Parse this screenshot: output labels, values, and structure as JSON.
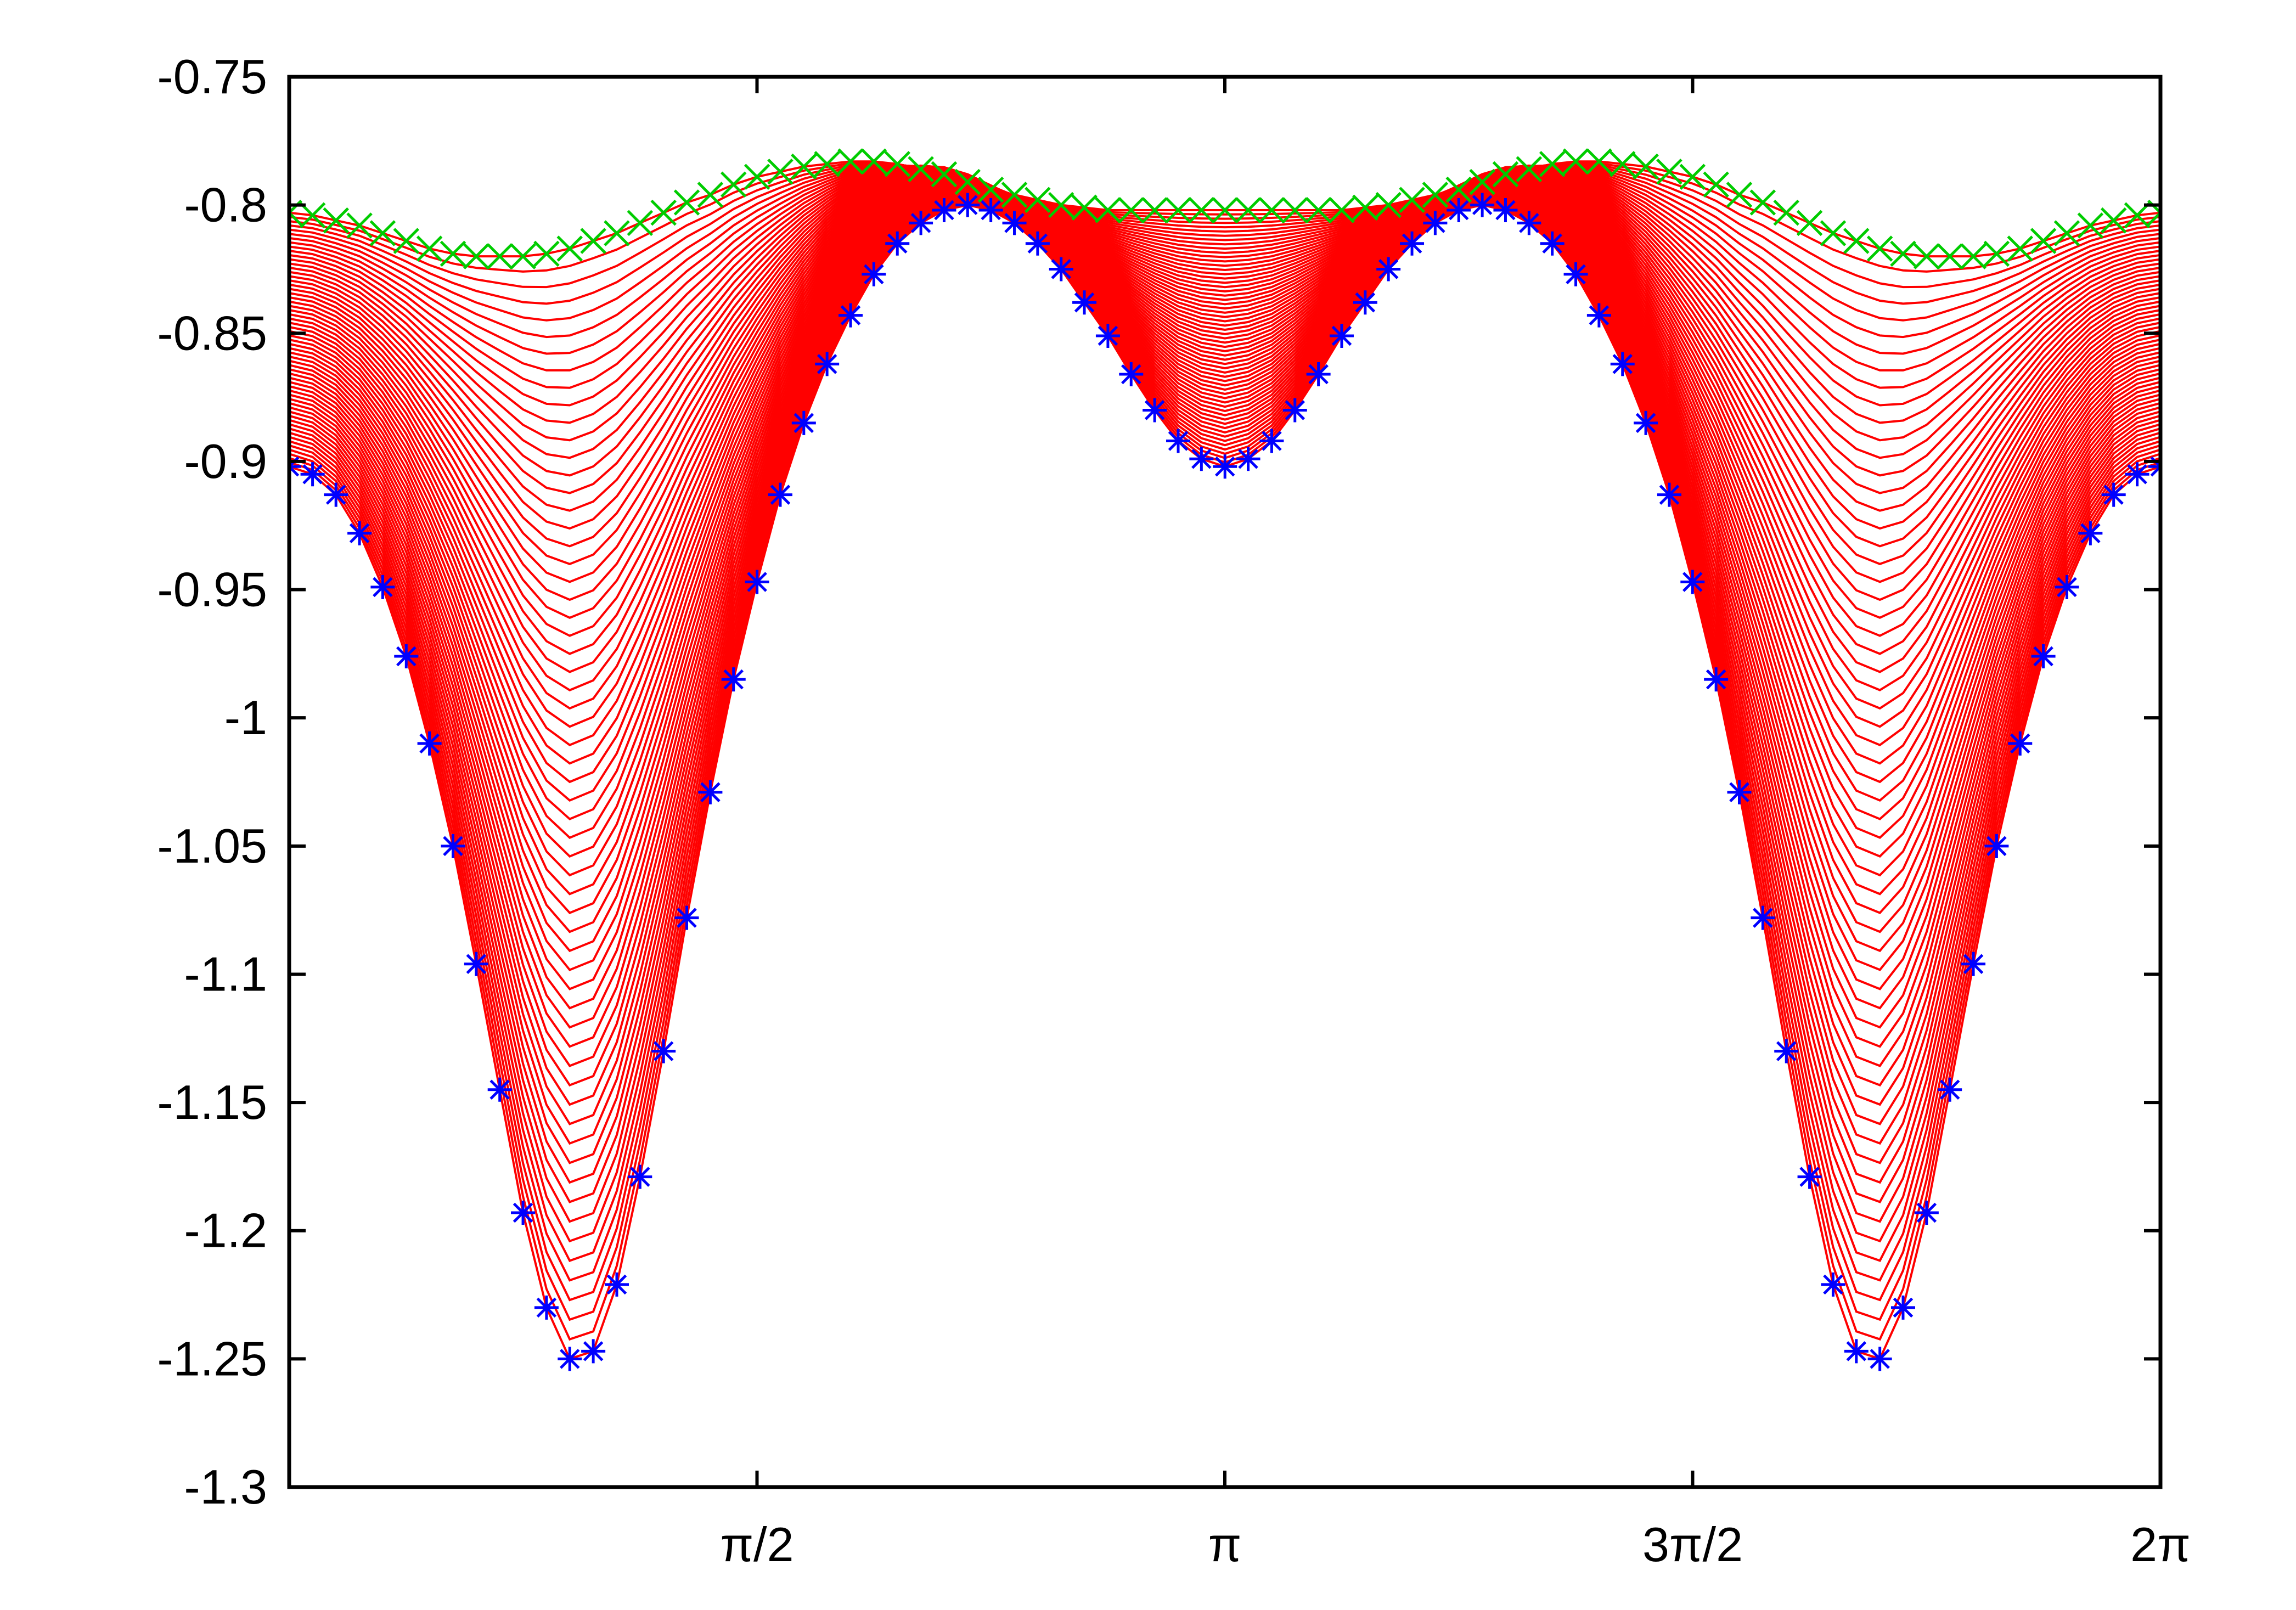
{
  "chart_data": {
    "type": "line",
    "title": "",
    "xlabel": "",
    "ylabel": "",
    "xlim": [
      0,
      6.283185307
    ],
    "ylim": [
      -1.3,
      -0.75
    ],
    "grid": false,
    "legend": "none",
    "x_ticks": [
      {
        "value": 1.570796327,
        "label": "π/2"
      },
      {
        "value": 3.141592654,
        "label": "π"
      },
      {
        "value": 4.71238898,
        "label": "3π/2"
      },
      {
        "value": 6.283185307,
        "label": "2π"
      }
    ],
    "y_ticks": [
      {
        "value": -0.75,
        "label": "-0.75"
      },
      {
        "value": -0.8,
        "label": "-0.8"
      },
      {
        "value": -0.85,
        "label": "-0.85"
      },
      {
        "value": -0.9,
        "label": "-0.9"
      },
      {
        "value": -0.95,
        "label": "-0.95"
      },
      {
        "value": -1.0,
        "label": "-1"
      },
      {
        "value": -1.05,
        "label": "-1.05"
      },
      {
        "value": -1.1,
        "label": "-1.1"
      },
      {
        "value": -1.15,
        "label": "-1.15"
      },
      {
        "value": -1.2,
        "label": "-1.2"
      },
      {
        "value": -1.25,
        "label": "-1.25"
      },
      {
        "value": -1.3,
        "label": "-1.3"
      }
    ],
    "series": [
      {
        "marker": "asterisk",
        "color": "#0000ff",
        "x": [
          0,
          0.0785,
          0.157,
          0.236,
          0.314,
          0.393,
          0.471,
          0.55,
          0.628,
          0.707,
          0.785,
          0.864,
          0.942,
          1.021,
          1.1,
          1.178,
          1.257,
          1.335,
          1.414,
          1.492,
          1.571,
          1.649,
          1.728,
          1.806,
          1.885,
          1.963,
          2.042,
          2.121,
          2.199,
          2.278,
          2.356,
          2.435,
          2.513,
          2.592,
          2.67,
          2.749,
          2.827,
          2.906,
          2.985,
          3.063,
          3.142,
          3.22,
          3.299,
          3.377,
          3.456,
          3.534,
          3.613,
          3.691,
          3.77,
          3.848,
          3.927,
          4.006,
          4.084,
          4.163,
          4.241,
          4.32,
          4.398,
          4.477,
          4.555,
          4.634,
          4.712,
          4.791,
          4.869,
          4.948,
          5.027,
          5.105,
          5.184,
          5.262,
          5.341,
          5.419,
          5.498,
          5.576,
          5.655,
          5.733,
          5.812,
          5.89,
          5.969,
          6.048,
          6.126,
          6.205,
          6.283
        ],
        "y": [
          -0.902,
          -0.905,
          -0.913,
          -0.928,
          -0.949,
          -0.976,
          -1.01,
          -1.05,
          -1.096,
          -1.145,
          -1.193,
          -1.23,
          -1.25,
          -1.247,
          -1.221,
          -1.179,
          -1.13,
          -1.078,
          -1.029,
          -0.985,
          -0.947,
          -0.913,
          -0.885,
          -0.862,
          -0.843,
          -0.827,
          -0.815,
          -0.807,
          -0.802,
          -0.8,
          -0.802,
          -0.807,
          -0.815,
          -0.825,
          -0.838,
          -0.851,
          -0.866,
          -0.88,
          -0.892,
          -0.899,
          -0.902,
          -0.899,
          -0.892,
          -0.88,
          -0.866,
          -0.851,
          -0.838,
          -0.825,
          -0.815,
          -0.807,
          -0.802,
          -0.8,
          -0.802,
          -0.807,
          -0.815,
          -0.827,
          -0.843,
          -0.862,
          -0.885,
          -0.913,
          -0.947,
          -0.985,
          -1.029,
          -1.078,
          -1.13,
          -1.179,
          -1.221,
          -1.247,
          -1.25,
          -1.23,
          -1.193,
          -1.145,
          -1.096,
          -1.05,
          -1.01,
          -0.976,
          -0.949,
          -0.928,
          -0.913,
          -0.905,
          -0.902
        ]
      },
      {
        "marker": "cross",
        "color": "#00cc00",
        "x": [
          0,
          0.0785,
          0.157,
          0.236,
          0.314,
          0.393,
          0.471,
          0.55,
          0.628,
          0.707,
          0.785,
          0.864,
          0.942,
          1.021,
          1.1,
          1.178,
          1.257,
          1.335,
          1.414,
          1.492,
          1.571,
          1.649,
          1.728,
          1.806,
          1.885,
          1.963,
          2.042,
          2.121,
          2.199,
          2.278,
          2.356,
          2.435,
          2.513,
          2.592,
          2.67,
          2.749,
          2.827,
          2.906,
          2.985,
          3.063,
          3.142,
          3.22,
          3.299,
          3.377,
          3.456,
          3.534,
          3.613,
          3.691,
          3.77,
          3.848,
          3.927,
          4.006,
          4.084,
          4.163,
          4.241,
          4.32,
          4.398,
          4.477,
          4.555,
          4.634,
          4.712,
          4.791,
          4.869,
          4.948,
          5.027,
          5.105,
          5.184,
          5.262,
          5.341,
          5.419,
          5.498,
          5.576,
          5.655,
          5.733,
          5.812,
          5.89,
          5.969,
          6.048,
          6.126,
          6.205,
          6.283
        ],
        "y": [
          -0.803,
          -0.804,
          -0.806,
          -0.808,
          -0.811,
          -0.814,
          -0.817,
          -0.819,
          -0.82,
          -0.82,
          -0.82,
          -0.819,
          -0.817,
          -0.814,
          -0.811,
          -0.807,
          -0.803,
          -0.799,
          -0.796,
          -0.792,
          -0.789,
          -0.787,
          -0.785,
          -0.784,
          -0.783,
          -0.783,
          -0.784,
          -0.786,
          -0.788,
          -0.791,
          -0.794,
          -0.796,
          -0.798,
          -0.8,
          -0.801,
          -0.802,
          -0.802,
          -0.802,
          -0.802,
          -0.802,
          -0.802,
          -0.802,
          -0.802,
          -0.802,
          -0.802,
          -0.802,
          -0.801,
          -0.8,
          -0.798,
          -0.796,
          -0.794,
          -0.791,
          -0.788,
          -0.786,
          -0.784,
          -0.783,
          -0.783,
          -0.784,
          -0.785,
          -0.787,
          -0.789,
          -0.792,
          -0.796,
          -0.799,
          -0.803,
          -0.807,
          -0.811,
          -0.814,
          -0.817,
          -0.819,
          -0.82,
          -0.82,
          -0.82,
          -0.819,
          -0.817,
          -0.814,
          -0.811,
          -0.808,
          -0.806,
          -0.804,
          -0.803
        ]
      },
      {
        "style": "family of interpolating curves",
        "color": "#ff0000",
        "count": 60,
        "from": "asterisk series",
        "to": "cross series",
        "bulge_peaks_y": -0.768
      }
    ]
  }
}
